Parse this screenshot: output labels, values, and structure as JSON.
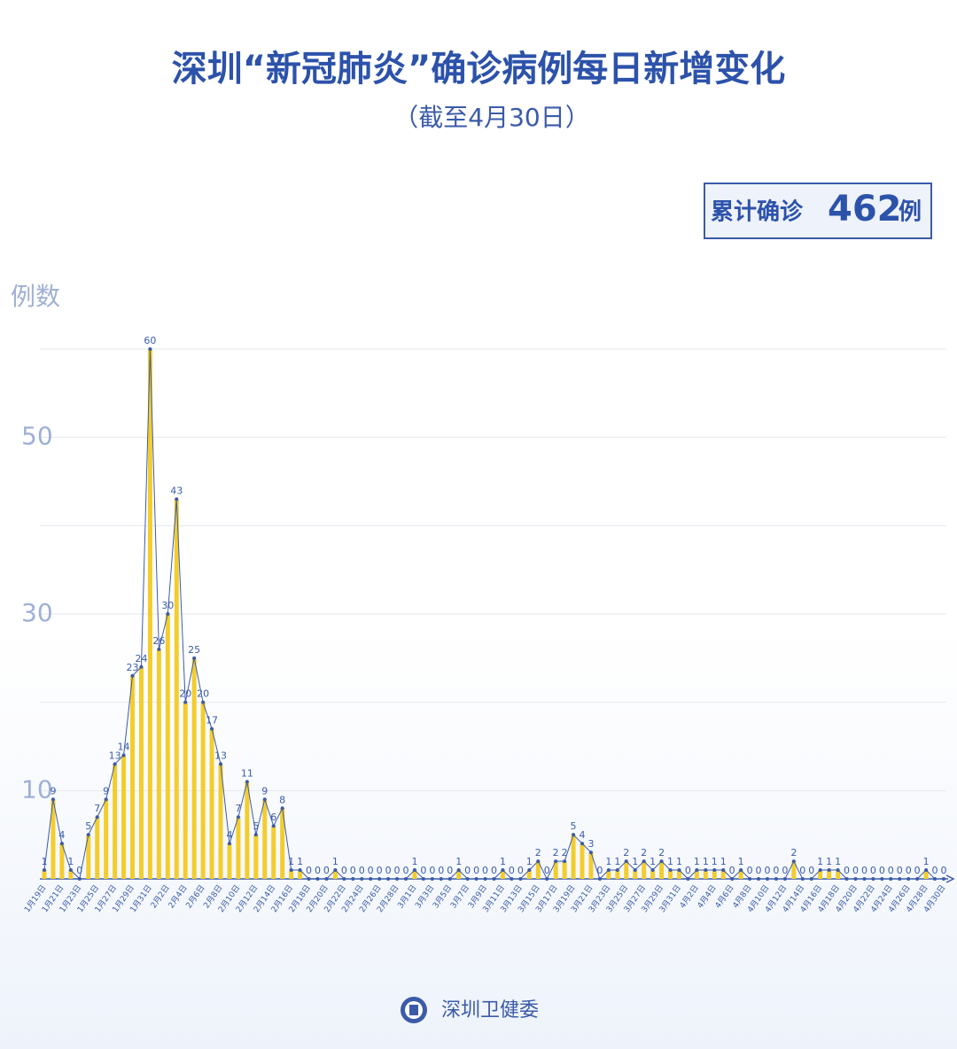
{
  "chart_data": {
    "type": "line",
    "title": "深圳“新冠肺炎”确诊病例每日新增变化",
    "subtitle": "（截至4月30日）",
    "total_label": "累计确诊",
    "total_value": 462,
    "total_unit": "例",
    "ylabel": "例数",
    "source": "深圳卫健委",
    "categories": [
      "1月19日",
      null,
      "1月21日",
      null,
      "1月23日",
      null,
      "1月25日",
      null,
      "1月27日",
      null,
      "1月29日",
      null,
      "1月31日",
      null,
      "2月2日",
      null,
      "2月4日",
      null,
      "2月6日",
      null,
      "2月8日",
      null,
      "2月10日",
      null,
      "2月12日",
      null,
      "2月14日",
      null,
      "2月16日",
      null,
      "2月18日",
      null,
      "2月20日",
      null,
      "2月22日",
      null,
      "2月24日",
      null,
      "2月26日",
      null,
      "2月28日",
      null,
      "3月1日",
      null,
      "3月3日",
      null,
      "3月5日",
      null,
      "3月7日",
      null,
      "3月9日",
      null,
      "3月11日",
      null,
      "3月13日",
      null,
      "3月15日",
      null,
      "3月17日",
      null,
      "3月19日",
      null,
      "3月21日",
      null,
      "3月23日",
      null,
      "3月25日",
      null,
      "3月27日",
      null,
      "3月29日",
      null,
      "3月31日",
      null,
      "4月2日",
      null,
      "4月4日",
      null,
      "4月6日",
      null,
      "4月8日",
      null,
      "4月10日",
      null,
      "4月12日",
      null,
      "4月14日",
      null,
      "4月16日",
      null,
      "4月18日",
      null,
      "4月20日",
      null,
      "4月22日",
      null,
      "4月24日",
      null,
      "4月26日",
      null,
      "4月28日",
      null,
      "4月30日"
    ],
    "values": [
      1,
      9,
      4,
      1,
      0,
      5,
      7,
      9,
      13,
      14,
      23,
      24,
      60,
      26,
      30,
      43,
      20,
      25,
      20,
      17,
      13,
      4,
      7,
      11,
      5,
      9,
      6,
      8,
      1,
      1,
      0,
      0,
      0,
      1,
      0,
      0,
      0,
      0,
      0,
      0,
      0,
      0,
      1,
      0,
      0,
      0,
      0,
      1,
      0,
      0,
      0,
      0,
      1,
      0,
      0,
      1,
      2,
      0,
      2,
      2,
      5,
      4,
      3,
      0,
      1,
      1,
      2,
      1,
      2,
      1,
      2,
      1,
      1,
      0,
      1,
      1,
      1,
      1,
      0,
      1,
      0,
      0,
      0,
      0,
      0,
      2,
      0,
      0,
      1,
      1,
      1,
      0,
      0,
      0,
      0,
      0,
      0,
      0,
      0,
      0,
      1,
      0,
      0
    ],
    "color": "#3b5ba9",
    "bar_color": "#f3cd2c",
    "ylim": [
      0,
      60
    ],
    "yticks": [
      10,
      30,
      50
    ],
    "gridlines": [
      10,
      20,
      30,
      40,
      50,
      60
    ],
    "grid": true
  }
}
